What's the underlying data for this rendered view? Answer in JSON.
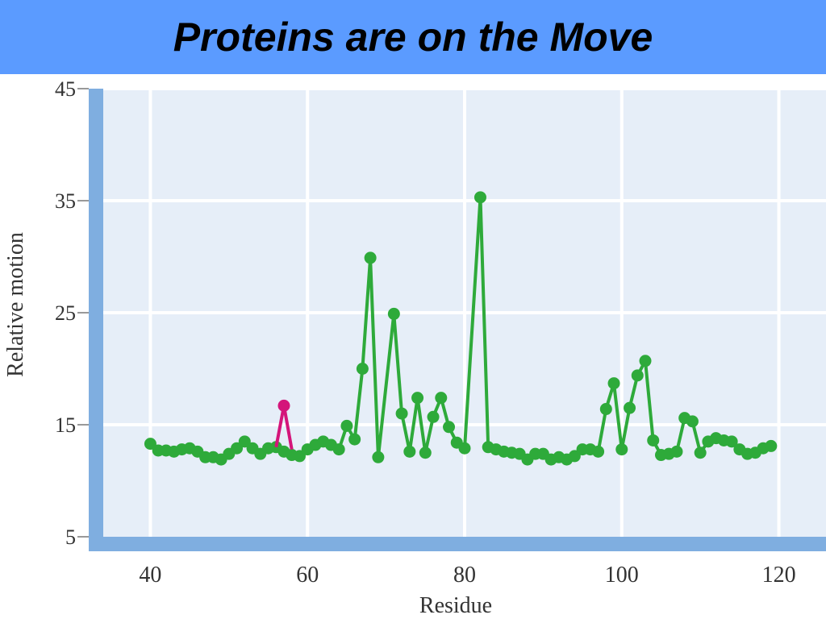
{
  "slide_title": "Proteins are on the Move",
  "colors": {
    "header_bg": "#5b9bff",
    "plot_bg": "#e6eef8",
    "axis_band": "#7faee0",
    "grid": "#ffffff",
    "series_main": "#2eaa3a",
    "series_highlight": "#d4157a"
  },
  "chart_data": {
    "type": "line",
    "title": "",
    "xlabel": "Residue",
    "ylabel": "Relative motion",
    "xlim": [
      34,
      126
    ],
    "ylim": [
      5,
      45
    ],
    "xticks": [
      40,
      60,
      80,
      100,
      120
    ],
    "yticks": [
      5,
      15,
      25,
      35,
      45
    ],
    "grid": true,
    "series": [
      {
        "style": "main",
        "points": [
          [
            40,
            13.3
          ],
          [
            41,
            12.7
          ],
          [
            42,
            12.7
          ],
          [
            43,
            12.6
          ],
          [
            44,
            12.8
          ],
          [
            45,
            12.9
          ],
          [
            46,
            12.6
          ],
          [
            47,
            12.1
          ],
          [
            48,
            12.1
          ],
          [
            49,
            11.9
          ],
          [
            50,
            12.4
          ],
          [
            51,
            12.9
          ],
          [
            52,
            13.5
          ],
          [
            53,
            12.9
          ],
          [
            54,
            12.4
          ],
          [
            55,
            12.9
          ],
          [
            56,
            13.0
          ],
          [
            57,
            12.6
          ],
          [
            58,
            12.3
          ],
          [
            59,
            12.2
          ],
          [
            60,
            12.8
          ],
          [
            61,
            13.2
          ],
          [
            62,
            13.5
          ],
          [
            63,
            13.2
          ],
          [
            64,
            12.8
          ],
          [
            65,
            14.9
          ],
          [
            66,
            13.7
          ],
          [
            67,
            20.0
          ],
          [
            68,
            29.9
          ],
          [
            69,
            12.1
          ],
          [
            71,
            24.9
          ],
          [
            72,
            16.0
          ],
          [
            73,
            12.6
          ],
          [
            74,
            17.4
          ],
          [
            75,
            12.5
          ],
          [
            76,
            15.7
          ],
          [
            77,
            17.4
          ],
          [
            78,
            14.8
          ],
          [
            79,
            13.4
          ],
          [
            80,
            12.9
          ],
          [
            82,
            35.3
          ],
          [
            83,
            13.0
          ],
          [
            84,
            12.8
          ],
          [
            85,
            12.6
          ],
          [
            86,
            12.5
          ],
          [
            87,
            12.4
          ],
          [
            88,
            11.9
          ],
          [
            89,
            12.4
          ],
          [
            90,
            12.4
          ],
          [
            91,
            11.9
          ],
          [
            92,
            12.1
          ],
          [
            93,
            11.9
          ],
          [
            94,
            12.2
          ],
          [
            95,
            12.8
          ],
          [
            96,
            12.8
          ],
          [
            97,
            12.6
          ],
          [
            98,
            16.4
          ],
          [
            99,
            18.7
          ],
          [
            100,
            12.8
          ],
          [
            101,
            16.5
          ],
          [
            102,
            19.4
          ],
          [
            103,
            20.7
          ],
          [
            104,
            13.6
          ],
          [
            105,
            12.3
          ],
          [
            106,
            12.4
          ],
          [
            107,
            12.6
          ],
          [
            108,
            15.6
          ],
          [
            109,
            15.3
          ],
          [
            110,
            12.5
          ],
          [
            111,
            13.5
          ],
          [
            112,
            13.8
          ],
          [
            113,
            13.6
          ],
          [
            114,
            13.5
          ],
          [
            115,
            12.8
          ],
          [
            116,
            12.4
          ],
          [
            117,
            12.5
          ],
          [
            118,
            12.9
          ],
          [
            119,
            13.1
          ]
        ]
      },
      {
        "style": "highlight",
        "points": [
          [
            56,
            13.0
          ],
          [
            57,
            16.7
          ],
          [
            58,
            12.8
          ]
        ]
      }
    ]
  }
}
